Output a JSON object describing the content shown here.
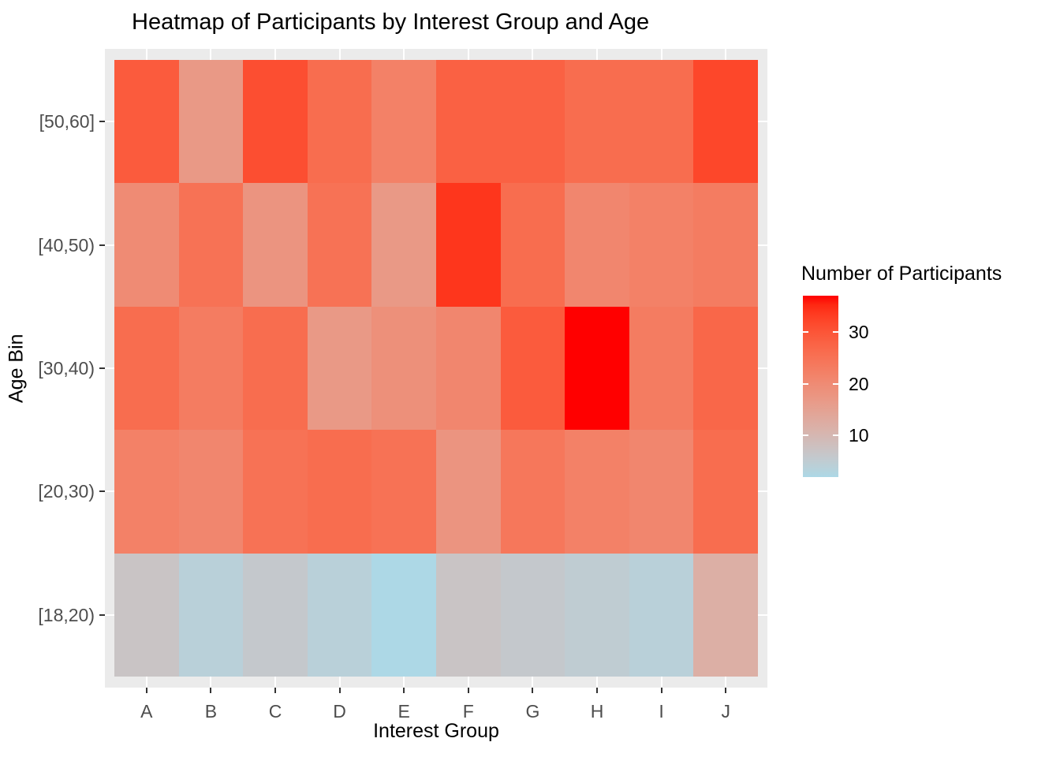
{
  "figure": {
    "background": "#FFFFFF"
  },
  "chart_data": {
    "type": "heatmap",
    "title": "Heatmap of Participants by Interest Group and Age",
    "xlabel": "Interest Group",
    "ylabel": "Age Bin",
    "x_categories": [
      "A",
      "B",
      "C",
      "D",
      "E",
      "F",
      "G",
      "H",
      "I",
      "J"
    ],
    "y_categories_top_to_bottom": [
      "[50,60]",
      "[40,50)",
      "[30,40)",
      "[20,30)",
      "[18,20)"
    ],
    "series": [
      {
        "y": "[50,60]",
        "values": [
          29,
          17,
          31,
          26,
          22,
          28,
          28,
          26,
          26,
          32
        ]
      },
      {
        "y": "[40,50)",
        "values": [
          20,
          25,
          18,
          25,
          17,
          34,
          26,
          21,
          22,
          23
        ]
      },
      {
        "y": "[30,40)",
        "values": [
          26,
          23,
          26,
          17,
          19,
          21,
          29,
          37,
          23,
          27
        ]
      },
      {
        "y": "[20,30)",
        "values": [
          22,
          21,
          25,
          26,
          25,
          18,
          24,
          22,
          21,
          26
        ]
      },
      {
        "y": "[18,20)",
        "values": [
          7,
          4,
          6,
          4,
          2,
          7,
          6,
          5,
          4,
          12
        ]
      }
    ],
    "legend": {
      "title": "Number of Participants",
      "ticks": [
        30,
        20,
        10
      ],
      "domain": [
        2,
        37
      ],
      "low_color": "#ADD8E6",
      "high_color": "#FF0000"
    },
    "grid": true,
    "legend_position": "right",
    "panel_bg": "#EBEBEB",
    "grid_color": "#FFFFFF",
    "axis_text_color": "#4D4D4D",
    "tick_color": "#333333"
  }
}
